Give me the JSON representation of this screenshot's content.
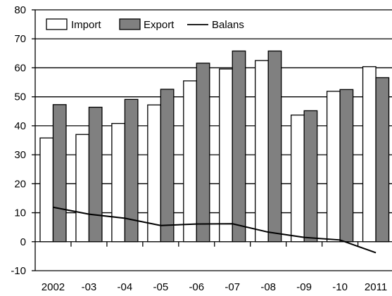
{
  "chart_data": {
    "type": "bar",
    "title": "",
    "xlabel": "",
    "ylabel": "",
    "categories": [
      "2002",
      "-03",
      "-04",
      "-05",
      "-06",
      "-07",
      "-08",
      "-09",
      "-10",
      "2011"
    ],
    "ylim": [
      -10,
      80
    ],
    "yticks": [
      -10,
      0,
      10,
      20,
      30,
      40,
      50,
      60,
      70,
      80
    ],
    "grid": true,
    "legend_position": "top-left",
    "series": [
      {
        "name": "Import",
        "kind": "bar",
        "color": "#ffffff",
        "values": [
          35.8,
          37,
          40.8,
          47.2,
          55.5,
          59.6,
          62.5,
          43.7,
          51.9,
          60.4
        ]
      },
      {
        "name": "Export",
        "kind": "bar",
        "color": "#808080",
        "values": [
          47.3,
          46.4,
          49.1,
          52.6,
          61.6,
          65.8,
          65.8,
          45.2,
          52.5,
          56.6
        ]
      },
      {
        "name": "Balans",
        "kind": "line",
        "color": "#000000",
        "values": [
          11.9,
          9.5,
          8.1,
          5.6,
          6.1,
          6.2,
          3.3,
          1.5,
          0.6,
          -3.8
        ]
      }
    ]
  }
}
